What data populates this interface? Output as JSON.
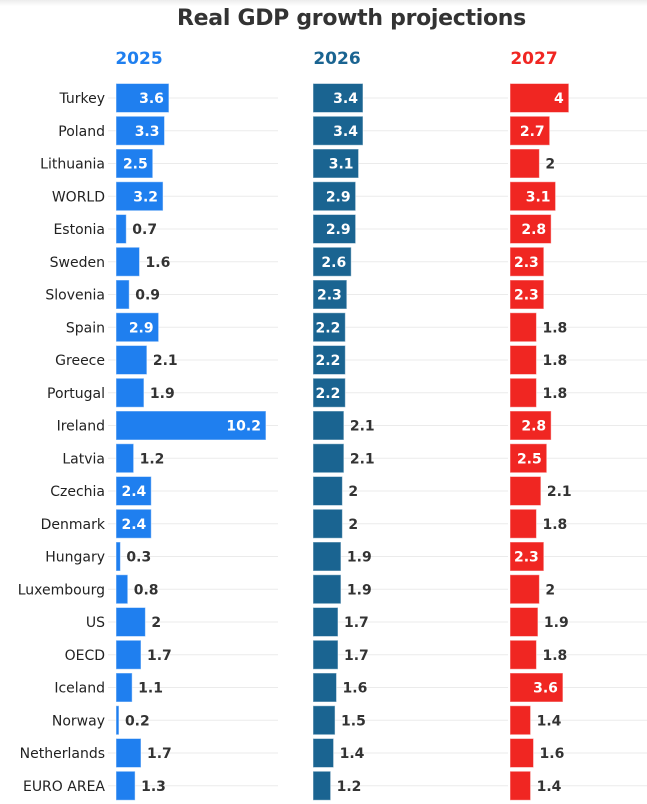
{
  "chart_data": {
    "type": "bar",
    "title": "Real GDP growth projections",
    "xlabel": "",
    "ylabel": "",
    "xlim": [
      0,
      10.2
    ],
    "grid": true,
    "categories": [
      "Turkey",
      "Poland",
      "Lithuania",
      "WORLD",
      "Estonia",
      "Sweden",
      "Slovenia",
      "Spain",
      "Greece",
      "Portugal",
      "Ireland",
      "Latvia",
      "Czechia",
      "Denmark",
      "Hungary",
      "Luxembourg",
      "US",
      "OECD",
      "Iceland",
      "Norway",
      "Netherlands",
      "EURO AREA"
    ],
    "series": [
      {
        "name": "2025",
        "color": "#1f7fef",
        "values": [
          3.6,
          3.3,
          2.5,
          3.2,
          0.7,
          1.6,
          0.9,
          2.9,
          2.1,
          1.9,
          10.2,
          1.2,
          2.4,
          2.4,
          0.3,
          0.8,
          2,
          1.7,
          1.1,
          0.2,
          1.7,
          1.3
        ]
      },
      {
        "name": "2026",
        "color": "#1a6491",
        "values": [
          3.4,
          3.4,
          3.1,
          2.9,
          2.9,
          2.6,
          2.3,
          2.2,
          2.2,
          2.2,
          2.1,
          2.1,
          2,
          2,
          1.9,
          1.9,
          1.7,
          1.7,
          1.6,
          1.5,
          1.4,
          1.2
        ]
      },
      {
        "name": "2027",
        "color": "#f02622",
        "values": [
          4,
          2.7,
          2,
          3.1,
          2.8,
          2.3,
          2.3,
          1.8,
          1.8,
          1.8,
          2.8,
          2.5,
          2.1,
          1.8,
          2.3,
          2,
          1.9,
          1.8,
          3.6,
          1.4,
          1.6,
          1.4
        ]
      }
    ]
  }
}
